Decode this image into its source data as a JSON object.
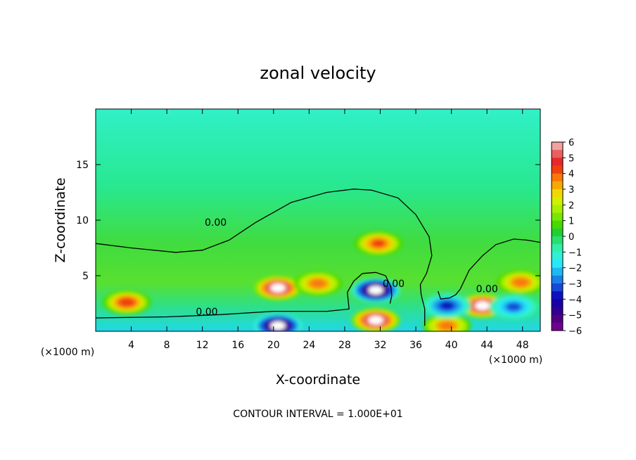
{
  "chart_data": {
    "type": "heatmap",
    "title": "zonal velocity",
    "xlabel": "X-coordinate",
    "ylabel": "Z-coordinate",
    "x_unit_left": "(×1000 m)",
    "x_unit_right": "(×1000 m)",
    "xlim": [
      0,
      50
    ],
    "ylim": [
      0,
      20
    ],
    "x_ticks": [
      4,
      8,
      12,
      16,
      20,
      24,
      28,
      32,
      36,
      40,
      44,
      48
    ],
    "y_ticks": [
      5,
      10,
      15
    ],
    "colorbar": {
      "min": -6,
      "max": 6,
      "ticks": [
        6,
        5,
        4,
        3,
        2,
        1,
        0,
        -1,
        -2,
        -3,
        -4,
        -5,
        -6
      ],
      "tick_labels": [
        "6",
        "5",
        "4",
        "3",
        "2",
        "1",
        "0",
        "−1",
        "−2",
        "−3",
        "−4",
        "−5",
        "−6"
      ],
      "colors": [
        "#f4a0a0",
        "#e86060",
        "#e82828",
        "#f04010",
        "#f87808",
        "#f8a800",
        "#f0d800",
        "#d0f000",
        "#a8f000",
        "#78e800",
        "#48d800",
        "#20d030",
        "#28e070",
        "#30f0a8",
        "#30f0d8",
        "#28e8f8",
        "#20b8f0",
        "#1880e8",
        "#1848d8",
        "#1010c0",
        "#1800a8",
        "#300090",
        "#500080",
        "#700090"
      ]
    },
    "contour_interval_text": "CONTOUR INTERVAL = 1.000E+01",
    "contour_labels": [
      {
        "text": "0.00",
        "x": 13.5,
        "z": 9.5
      },
      {
        "text": "0.00",
        "x": 12.5,
        "z": 1.45
      },
      {
        "text": "0.00",
        "x": 33.5,
        "z": 4.0
      },
      {
        "text": "0.00",
        "x": 44.0,
        "z": 3.5
      }
    ],
    "zero_contours": [
      [
        [
          0,
          7.9
        ],
        [
          4,
          7.5
        ],
        [
          9,
          7.1
        ],
        [
          12,
          7.3
        ],
        [
          15,
          8.2
        ],
        [
          18,
          9.8
        ],
        [
          22,
          11.6
        ],
        [
          26,
          12.5
        ],
        [
          29,
          12.8
        ],
        [
          31,
          12.7
        ],
        [
          34,
          12.0
        ],
        [
          36,
          10.5
        ],
        [
          37.5,
          8.5
        ],
        [
          37.8,
          6.8
        ],
        [
          37.2,
          5.2
        ],
        [
          36.5,
          4.2
        ],
        [
          36.6,
          3.3
        ],
        [
          37,
          2.0
        ],
        [
          37,
          0.5
        ]
      ],
      [
        [
          0,
          1.2
        ],
        [
          8,
          1.3
        ],
        [
          14,
          1.5
        ],
        [
          20,
          1.8
        ],
        [
          26,
          1.8
        ],
        [
          28.5,
          2.0
        ]
      ],
      [
        [
          28.5,
          2.0
        ],
        [
          28.3,
          3.5
        ],
        [
          29,
          4.5
        ],
        [
          30,
          5.2
        ],
        [
          31.5,
          5.3
        ],
        [
          32.6,
          5.0
        ],
        [
          33.2,
          4.0
        ],
        [
          33.3,
          3.2
        ],
        [
          33.1,
          2.5
        ]
      ],
      [
        [
          41,
          3.8
        ],
        [
          42,
          5.5
        ],
        [
          43.5,
          6.8
        ],
        [
          45,
          7.8
        ],
        [
          47,
          8.3
        ],
        [
          48.5,
          8.2
        ],
        [
          50,
          8.0
        ]
      ],
      [
        [
          41,
          3.8
        ],
        [
          40.5,
          3.3
        ],
        [
          39.8,
          3.0
        ],
        [
          38.8,
          2.9
        ],
        [
          38.5,
          3.6
        ]
      ]
    ],
    "features": [
      {
        "kind": "positive",
        "x": 20.5,
        "z": 3.9,
        "peak": 6.5
      },
      {
        "kind": "positive",
        "x": 25.0,
        "z": 4.3,
        "peak": 4.0
      },
      {
        "kind": "positive",
        "x": 31.8,
        "z": 7.9,
        "peak": 4.2
      },
      {
        "kind": "positive",
        "x": 3.5,
        "z": 2.6,
        "peak": 4.5
      },
      {
        "kind": "positive",
        "x": 43.5,
        "z": 2.3,
        "peak": 6.5
      },
      {
        "kind": "positive",
        "x": 47.8,
        "z": 4.4,
        "peak": 4.0
      },
      {
        "kind": "positive",
        "x": 31.5,
        "z": 1.0,
        "peak": 6.5
      },
      {
        "kind": "positive",
        "x": 39.5,
        "z": 0.5,
        "peak": 4.0
      },
      {
        "kind": "negative",
        "x": 31.5,
        "z": 3.7,
        "peak": -6.5
      },
      {
        "kind": "negative",
        "x": 20.5,
        "z": 0.5,
        "peak": -6.5
      },
      {
        "kind": "negative",
        "x": 39.5,
        "z": 2.3,
        "peak": -3.5
      },
      {
        "kind": "negative",
        "x": 47.0,
        "z": 2.2,
        "peak": -3.0
      }
    ]
  }
}
